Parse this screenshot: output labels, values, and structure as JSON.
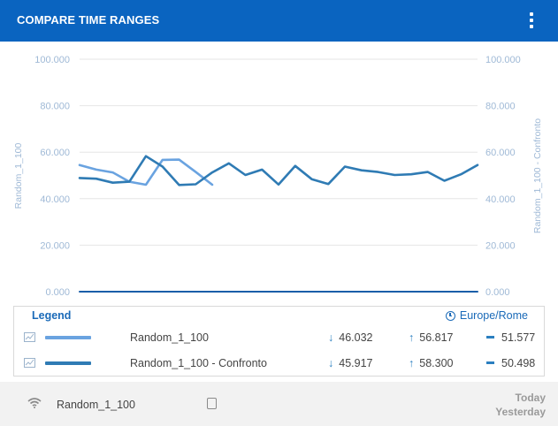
{
  "header": {
    "title": "COMPARE TIME RANGES",
    "menu_icon": "kebab-menu-icon"
  },
  "chart_data": {
    "type": "line",
    "left_axis": {
      "label": "Random_1_100",
      "ticks": [
        "100.000",
        "80.000",
        "60.000",
        "40.000",
        "20.000",
        "0.000"
      ],
      "range": [
        0,
        100
      ]
    },
    "right_axis": {
      "label": "Random_1_100 - Confronto",
      "ticks": [
        "100.000",
        "80.000",
        "60.000",
        "40.000",
        "20.000",
        "0.000"
      ],
      "range": [
        0,
        100
      ]
    },
    "grid": true,
    "series": [
      {
        "name": "Random_1_100",
        "color": "#6aa3e0",
        "values": [
          54.5,
          52.5,
          51.3,
          47.3,
          46.0,
          56.7,
          56.8,
          51.5,
          46.0
        ]
      },
      {
        "name": "Random_1_100 - Confronto",
        "color": "#2f7bb4",
        "values": [
          48.9,
          48.6,
          46.9,
          47.3,
          58.3,
          53.8,
          45.9,
          46.2,
          51.3,
          55.2,
          50.2,
          52.5,
          46.1,
          54.1,
          48.4,
          46.3,
          53.8,
          52.2,
          51.5,
          50.2,
          50.5,
          51.5,
          47.7,
          50.5,
          54.5
        ]
      },
      {
        "name": "",
        "color": "#1a5ea8",
        "values": [
          0,
          0
        ]
      }
    ]
  },
  "legend": {
    "title": "Legend",
    "timezone": "Europe/Rome",
    "rows": [
      {
        "name": "Random_1_100",
        "color": "#6aa3e0",
        "min": "46.032",
        "max": "56.817",
        "avg": "51.577"
      },
      {
        "name": "Random_1_100 - Confronto",
        "color": "#2f7bb4",
        "min": "45.917",
        "max": "58.300",
        "avg": "50.498"
      }
    ],
    "min_arrow": "↓",
    "max_arrow": "↑"
  },
  "footer": {
    "source": "Random_1_100",
    "today": "Today",
    "yesterday": "Yesterday"
  }
}
